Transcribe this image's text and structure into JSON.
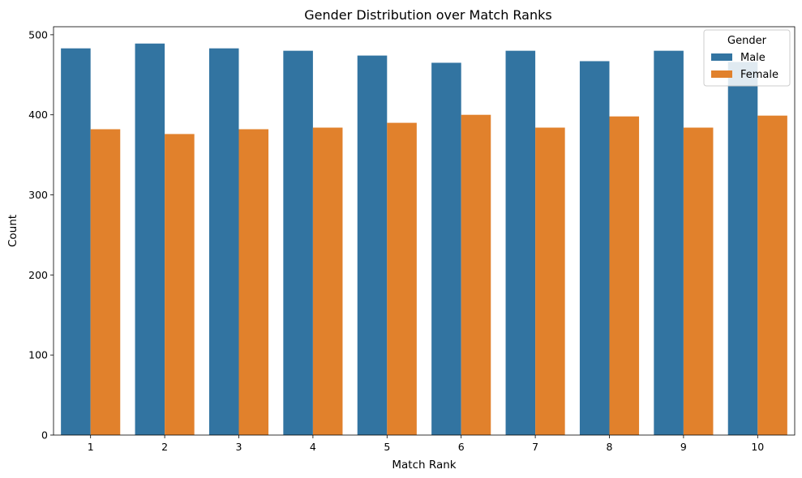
{
  "chart_data": {
    "type": "bar",
    "title": "Gender Distribution over Match Ranks",
    "xlabel": "Match Rank",
    "ylabel": "Count",
    "categories": [
      "1",
      "2",
      "3",
      "4",
      "5",
      "6",
      "7",
      "8",
      "9",
      "10"
    ],
    "series": [
      {
        "name": "Male",
        "color": "#3274a1",
        "values": [
          483,
          489,
          483,
          480,
          474,
          465,
          480,
          467,
          480,
          466
        ]
      },
      {
        "name": "Female",
        "color": "#e1812c",
        "values": [
          382,
          376,
          382,
          384,
          390,
          400,
          384,
          398,
          384,
          399
        ]
      }
    ],
    "ylim": [
      0,
      510
    ],
    "yticks": [
      0,
      100,
      200,
      300,
      400,
      500
    ],
    "grid": false,
    "legend": {
      "title": "Gender",
      "placement": "top-right"
    }
  }
}
